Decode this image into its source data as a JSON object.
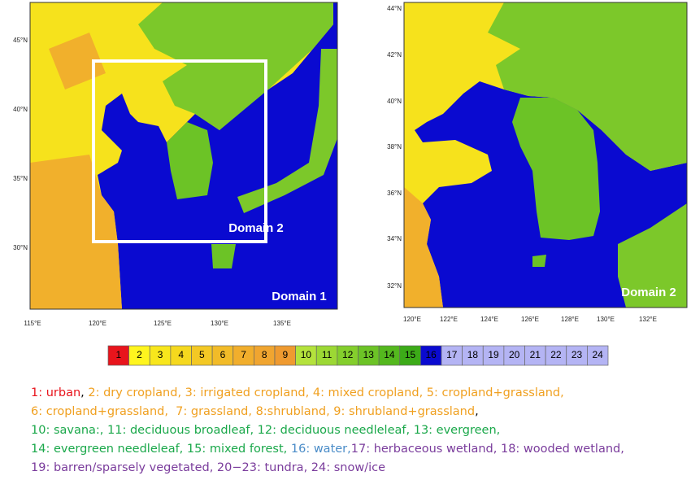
{
  "map1": {
    "label": "Domain 1",
    "inner_label": "Domain 2",
    "lat_ticks": [
      "45°N",
      "40°N",
      "35°N",
      "30°N"
    ],
    "lon_ticks": [
      "115°E",
      "120°E",
      "125°E",
      "130°E",
      "135°E"
    ]
  },
  "map2": {
    "label": "Domain 2",
    "lat_ticks": [
      "44°N",
      "42°N",
      "40°N",
      "38°N",
      "36°N",
      "34°N",
      "32°N"
    ],
    "lon_ticks": [
      "120°E",
      "122°E",
      "124°E",
      "126°E",
      "128°E",
      "130°E",
      "132°E"
    ]
  },
  "colorbar": [
    {
      "label": "1",
      "color": "#e8141c"
    },
    {
      "label": "2",
      "color": "#fff51e"
    },
    {
      "label": "3",
      "color": "#f8e61c"
    },
    {
      "label": "4",
      "color": "#f5d81e"
    },
    {
      "label": "5",
      "color": "#f3c824"
    },
    {
      "label": "6",
      "color": "#f2bb28"
    },
    {
      "label": "7",
      "color": "#f1ae2c"
    },
    {
      "label": "8",
      "color": "#f0a530"
    },
    {
      "label": "9",
      "color": "#ef9a30"
    },
    {
      "label": "10",
      "color": "#b4e23c"
    },
    {
      "label": "11",
      "color": "#9cd834"
    },
    {
      "label": "12",
      "color": "#84ce2c"
    },
    {
      "label": "13",
      "color": "#6cc326"
    },
    {
      "label": "14",
      "color": "#54b81e"
    },
    {
      "label": "15",
      "color": "#3cab18"
    },
    {
      "label": "16",
      "color": "#0a0ad0"
    },
    {
      "label": "17",
      "color": "#b4b4f4"
    },
    {
      "label": "18",
      "color": "#b4b4f4"
    },
    {
      "label": "19",
      "color": "#b4b4f4"
    },
    {
      "label": "20",
      "color": "#b4b4f4"
    },
    {
      "label": "21",
      "color": "#b4b4f4"
    },
    {
      "label": "22",
      "color": "#b4b4f4"
    },
    {
      "label": "23",
      "color": "#b4b4f4"
    },
    {
      "label": "24",
      "color": "#b4b4f4"
    }
  ],
  "legend_lines": [
    [
      {
        "text": "1: urban",
        "color": "#e8141c"
      },
      {
        "text": ", ",
        "color": "#000000"
      },
      {
        "text": "2: dry cropland, 3: irrigated cropland, 4: mixed cropland, 5: cropland+grassland,",
        "color": "#f0a020"
      }
    ],
    [
      {
        "text": "6: cropland+grassland,  7: grassland, 8:shrubland, 9: shrubland+grassland",
        "color": "#f0a020"
      },
      {
        "text": ",",
        "color": "#000000"
      }
    ],
    [
      {
        "text": "10: savana:, 11: deciduous broadleaf, 12: deciduous needleleaf, 13: evergreen,",
        "color": "#1aa84a"
      }
    ],
    [
      {
        "text": "14: evergreen needleleaf, 15: mixed forest, ",
        "color": "#1aa84a"
      },
      {
        "text": "16: water,",
        "color": "#4a8cc8"
      },
      {
        "text": "17: herbaceous wetland, 18: wooded wetland,",
        "color": "#7a3c9c"
      }
    ],
    [
      {
        "text": "19: barren/sparsely vegetated, 20−23: tundra, 24: snow/ice",
        "color": "#7a3c9c"
      }
    ]
  ]
}
